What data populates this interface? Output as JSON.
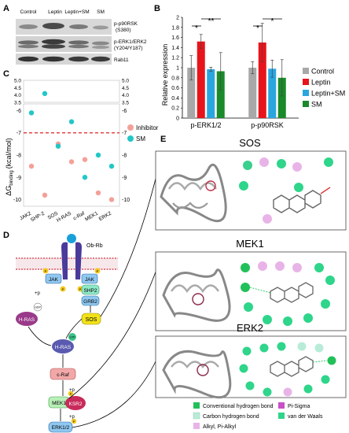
{
  "panels": {
    "A": {
      "letter": "A",
      "lanes": [
        "Control",
        "Leptin",
        "Leptin+SM",
        "SM"
      ],
      "blots": [
        {
          "label": "p-p90RSK",
          "sub": "(S380)"
        },
        {
          "label": "p-ERK1/ERK2",
          "sub": "(Y204/Y187)"
        },
        {
          "label": "Rab11",
          "sub": ""
        }
      ]
    },
    "B": {
      "letter": "B",
      "significance": [
        "*",
        "**",
        "*",
        "*"
      ]
    },
    "C": {
      "letter": "C"
    },
    "D": {
      "letter": "D",
      "nodes": {
        "obrb": "Ob-Rb",
        "jak_left": "JAK",
        "jak_right": "JAK",
        "shp2": "SHP2",
        "grb2": "GRB2",
        "hras_gdp": "H-RAS",
        "sos": "SOS",
        "hras_gtp": "H-RAS",
        "craf": "c-Raf",
        "mek1": "MEK1",
        "ksr2": "KSR2",
        "erk": "ERK1/2",
        "gdp": "GDP",
        "gtp1": "GTP",
        "gtp2": "GTP",
        "p": "P",
        "plus_p1": "+p",
        "plus_p2": "+p",
        "plus_p3": "+p"
      }
    },
    "E": {
      "letter": "E",
      "complexes": [
        {
          "title": "SOS"
        },
        {
          "title": "MEK1"
        },
        {
          "title": "ERK2"
        }
      ],
      "legend": [
        {
          "label": "Conventional hydrogen bond",
          "color": "#22c05a"
        },
        {
          "label": "Pi-Sigma",
          "color": "#c850c8"
        },
        {
          "label": "Carbon hydrogen bond",
          "color": "#b8ecd8"
        },
        {
          "label": "van der Waals",
          "color": "#2ed58a"
        },
        {
          "label": "Alkyl, Pi-Alkyl",
          "color": "#e8b4e8"
        }
      ]
    }
  },
  "chart_data": [
    {
      "type": "bar",
      "panel": "B",
      "categories": [
        "p-ERK1/2",
        "p-p90RSK"
      ],
      "ylabel": "Relative expression",
      "ylim": [
        0,
        2
      ],
      "yticks": [
        "0",
        "0.2",
        "0.4",
        "0.6",
        "0.8",
        "1",
        "1.2",
        "1.4",
        "1.6",
        "1.8",
        "2"
      ],
      "series": [
        {
          "name": "Control",
          "color": "#a8a8a8",
          "values": [
            1.0,
            1.0
          ],
          "errors": [
            0.24,
            0.12
          ]
        },
        {
          "name": "Leptin",
          "color": "#e8141b",
          "values": [
            1.52,
            1.5
          ],
          "errors": [
            0.14,
            0.38
          ]
        },
        {
          "name": "Leptin+SM",
          "color": "#2aa6df",
          "values": [
            0.97,
            0.98
          ],
          "errors": [
            0.04,
            0.17
          ]
        },
        {
          "name": "SM",
          "color": "#1a8a2a",
          "values": [
            0.93,
            0.8
          ],
          "errors": [
            0.37,
            0.36
          ]
        }
      ]
    },
    {
      "type": "scatter",
      "panel": "C",
      "categories": [
        "JAK2",
        "SHP-2",
        "SOS",
        "H-RAS",
        "c-Raf",
        "MEK1",
        "ERK2"
      ],
      "ylabel": "ΔG binding (kcal/mol)",
      "ylabel_main": "ΔG",
      "ylabel_sub": "binding",
      "ylabel_unit": "(kcal/mol)",
      "ylim_upper": [
        3.5,
        5
      ],
      "yticks_upper": [
        "3.5",
        "4.0",
        "4.5",
        "5.0"
      ],
      "ylim_lower": [
        -10.3,
        -5.7
      ],
      "yticks_lower": [
        "-6",
        "-7",
        "-8",
        "-9",
        "-10"
      ],
      "threshold": -7,
      "series": [
        {
          "name": "Inhibitor",
          "color": "#f4a098",
          "values": [
            -8.5,
            -9.8,
            -7.5,
            -8.3,
            -8.2,
            -9.7,
            -10.0
          ]
        },
        {
          "name": "SM",
          "color": "#22c7c7",
          "values": [
            -6.1,
            4.1,
            -7.6,
            -6.5,
            -9.0,
            -8.0,
            -8.5
          ]
        }
      ]
    }
  ]
}
